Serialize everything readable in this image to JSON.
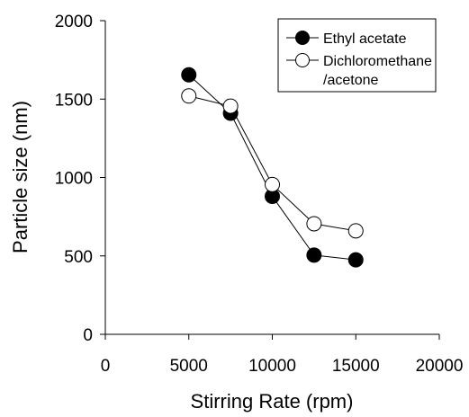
{
  "chart_data": {
    "type": "line",
    "xlabel": "Stirring Rate (rpm)",
    "ylabel": "Particle size (nm)",
    "xlim": [
      0,
      20000
    ],
    "ylim": [
      0,
      2000
    ],
    "xticks": [
      "0",
      "5000",
      "10000",
      "15000",
      "20000"
    ],
    "yticks": [
      "0",
      "500",
      "1000",
      "1500",
      "2000"
    ],
    "grid": false,
    "legend_position": "top-right",
    "x": [
      5000,
      7500,
      10000,
      12500,
      15000
    ],
    "series": [
      {
        "name": "Ethyl acetate",
        "marker": "filled-circle",
        "color": "#000000",
        "values": [
          1655,
          1410,
          880,
          505,
          475
        ]
      },
      {
        "name": "Dichloromethane /acetone",
        "name_lines": [
          "Dichloromethane",
          "/acetone"
        ],
        "marker": "open-circle",
        "color": "#000000",
        "values": [
          1520,
          1455,
          955,
          705,
          660
        ]
      }
    ]
  }
}
